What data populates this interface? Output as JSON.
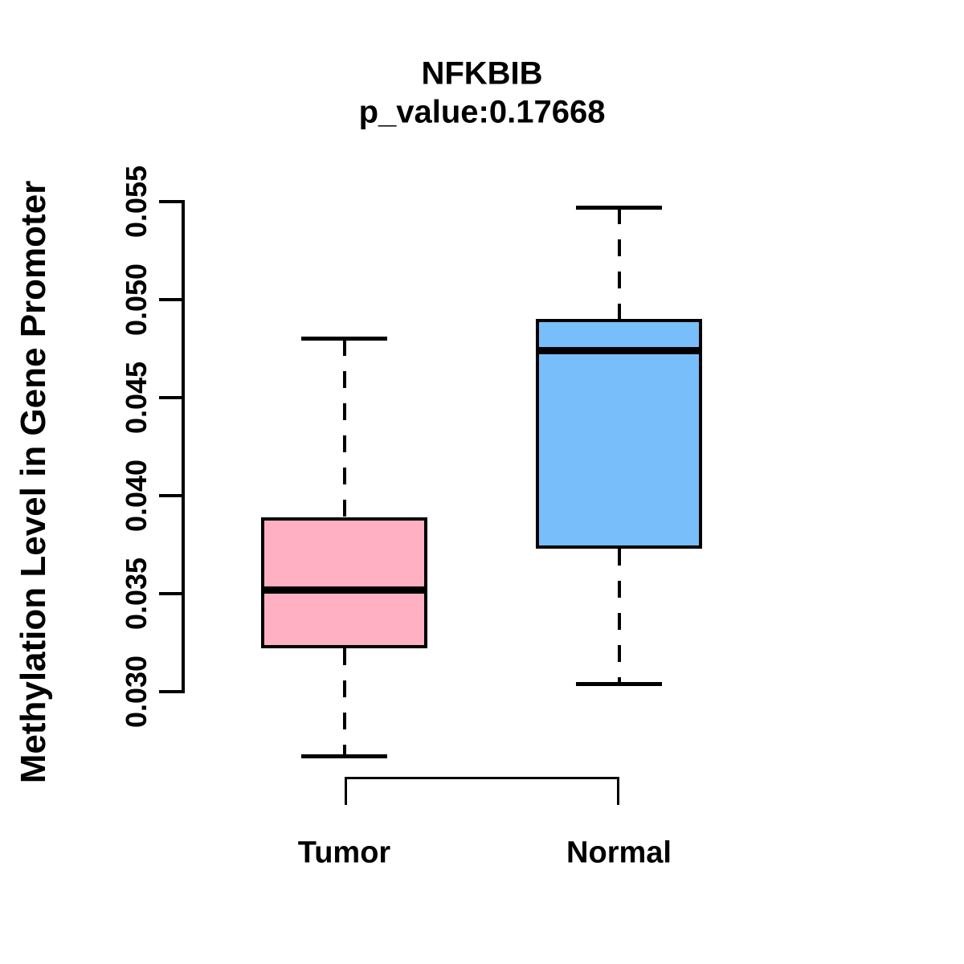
{
  "chart_data": {
    "type": "boxplot",
    "title": "NFKBIB",
    "subtitle": "p_value:0.17668",
    "ylabel": "Methylation Level in Gene Promoter",
    "xlabel": "",
    "categories": [
      "Tumor",
      "Normal"
    ],
    "series": [
      {
        "name": "Tumor",
        "color": "#FFB0C2",
        "whisker_low": 0.0267,
        "q1": 0.0322,
        "median": 0.0352,
        "q3": 0.0389,
        "whisker_high": 0.048
      },
      {
        "name": "Normal",
        "color": "#78BEFA",
        "whisker_low": 0.0304,
        "q1": 0.0373,
        "median": 0.0474,
        "q3": 0.049,
        "whisker_high": 0.0547
      }
    ],
    "yticks": [
      0.03,
      0.035,
      0.04,
      0.045,
      0.05,
      0.055
    ],
    "ytick_labels": [
      "0.030",
      "0.035",
      "0.040",
      "0.045",
      "0.050",
      "0.055"
    ],
    "ylim": [
      0.03,
      0.055
    ],
    "grid": false,
    "legend": "none",
    "axis_color": "#000000",
    "background_color": "#ffffff"
  }
}
